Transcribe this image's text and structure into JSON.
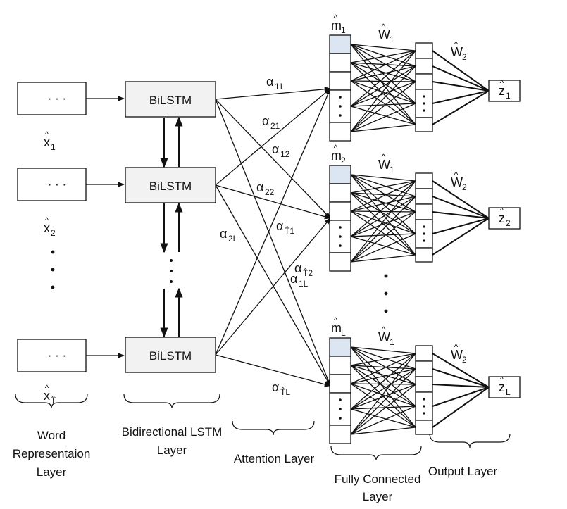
{
  "inputs": [
    {
      "dots": "· · ·",
      "label": "x",
      "sub": "1"
    },
    {
      "dots": "· · ·",
      "label": "x",
      "sub": "2"
    },
    {
      "dots": "· · ·",
      "label": "x",
      "sub": "T̂"
    }
  ],
  "bilstm": [
    "BiLSTM",
    "BiLSTM",
    "BiLSTM"
  ],
  "alphas": [
    {
      "sub": "11"
    },
    {
      "sub": "21"
    },
    {
      "sub": "12"
    },
    {
      "sub": "22"
    },
    {
      "sub": "T̂1"
    },
    {
      "sub": "2L"
    },
    {
      "sub": "T̂2"
    },
    {
      "sub": "1L"
    },
    {
      "sub": "T̂L"
    }
  ],
  "m_labels": [
    {
      "sub": "1"
    },
    {
      "sub": "2"
    },
    {
      "sub": "L"
    }
  ],
  "w1_labels": [
    {
      "sub": "1"
    },
    {
      "sub": "1"
    },
    {
      "sub": "1"
    }
  ],
  "w2_labels": [
    {
      "sub": "2"
    },
    {
      "sub": "2"
    },
    {
      "sub": "2"
    }
  ],
  "z_labels": [
    {
      "sub": "1"
    },
    {
      "sub": "2"
    },
    {
      "sub": "L"
    }
  ],
  "layers": {
    "word_line1": "Word",
    "word_line2": "Representaion",
    "word_line3": "Layer",
    "bilstm_line1": "Bidirectional LSTM",
    "bilstm_line2": "Layer",
    "attention": "Attention Layer",
    "fc_line1": "Fully Connected",
    "fc_line2": "Layer",
    "output": "Output Layer"
  },
  "symbols": {
    "alpha": "α",
    "m": "m",
    "w": "W",
    "z": "z",
    "hat": "^"
  }
}
